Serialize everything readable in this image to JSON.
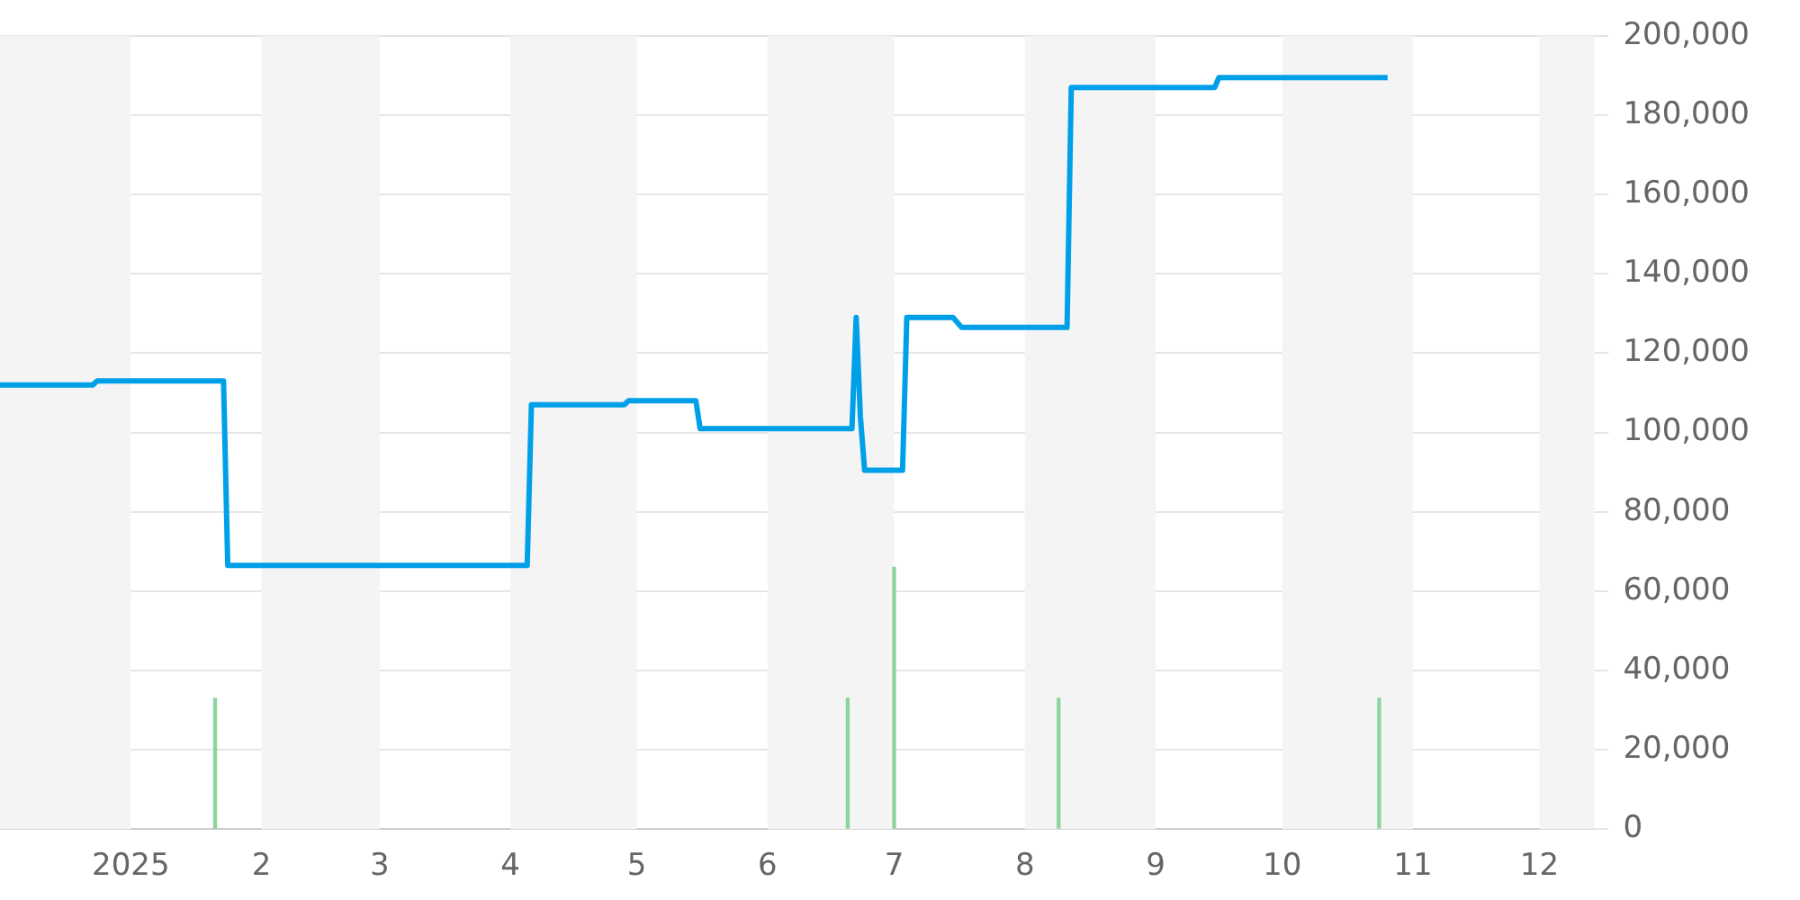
{
  "chart_data": {
    "type": "line",
    "xlim": [
      "2024-12-01",
      "2025-12-14"
    ],
    "xticks": [
      {
        "value": "2025-01-01",
        "label": "2025"
      },
      {
        "value": "2025-02-01",
        "label": "2"
      },
      {
        "value": "2025-03-01",
        "label": "3"
      },
      {
        "value": "2025-04-01",
        "label": "4"
      },
      {
        "value": "2025-05-01",
        "label": "5"
      },
      {
        "value": "2025-06-01",
        "label": "6"
      },
      {
        "value": "2025-07-01",
        "label": "7"
      },
      {
        "value": "2025-08-01",
        "label": "8"
      },
      {
        "value": "2025-09-01",
        "label": "9"
      },
      {
        "value": "2025-10-01",
        "label": "10"
      },
      {
        "value": "2025-11-01",
        "label": "11"
      },
      {
        "value": "2025-12-01",
        "label": "12"
      }
    ],
    "ylim": [
      0,
      200000
    ],
    "yticks": [
      {
        "value": 0,
        "label": "0"
      },
      {
        "value": 20000,
        "label": "20,000"
      },
      {
        "value": 40000,
        "label": "40,000"
      },
      {
        "value": 60000,
        "label": "60,000"
      },
      {
        "value": 80000,
        "label": "80,000"
      },
      {
        "value": 100000,
        "label": "100,000"
      },
      {
        "value": 120000,
        "label": "120,000"
      },
      {
        "value": 140000,
        "label": "140,000"
      },
      {
        "value": 160000,
        "label": "160,000"
      },
      {
        "value": 180000,
        "label": "180,000"
      },
      {
        "value": 200000,
        "label": "200,000"
      }
    ],
    "grid": "y",
    "legend": false,
    "marker": "none",
    "bands": [
      {
        "axis": "x",
        "from": "2024-12-01",
        "to": "2025-01-01",
        "color": "#f4f4f4"
      },
      {
        "axis": "x",
        "from": "2025-02-01",
        "to": "2025-03-01",
        "color": "#f4f4f4"
      },
      {
        "axis": "x",
        "from": "2025-04-01",
        "to": "2025-05-01",
        "color": "#f4f4f4"
      },
      {
        "axis": "x",
        "from": "2025-06-01",
        "to": "2025-07-01",
        "color": "#f4f4f4"
      },
      {
        "axis": "x",
        "from": "2025-08-01",
        "to": "2025-09-01",
        "color": "#f4f4f4"
      },
      {
        "axis": "x",
        "from": "2025-10-01",
        "to": "2025-11-01",
        "color": "#f4f4f4"
      },
      {
        "axis": "x",
        "from": "2025-12-01",
        "to": "2025-12-14",
        "color": "#f4f4f4"
      }
    ],
    "series": [
      {
        "color": "#00a0e9",
        "x": [
          "2024-12-01",
          "2024-12-23",
          "2024-12-24",
          "2025-01-23",
          "2025-01-24",
          "2025-04-05",
          "2025-04-06",
          "2025-04-28",
          "2025-04-29",
          "2025-05-15",
          "2025-05-16",
          "2025-06-21",
          "2025-06-22",
          "2025-06-23",
          "2025-06-24",
          "2025-07-03",
          "2025-07-04",
          "2025-07-15",
          "2025-07-17",
          "2025-08-11",
          "2025-08-12",
          "2025-09-15",
          "2025-09-16",
          "2025-10-26"
        ],
        "values": [
          112000,
          112000,
          113000,
          113000,
          66500,
          66500,
          107000,
          107000,
          108000,
          108000,
          101000,
          101000,
          129000,
          104000,
          90500,
          90500,
          129000,
          129000,
          126500,
          126500,
          187000,
          187000,
          189500,
          189500
        ]
      },
      {
        "type": "bar",
        "color": "#8dd49c",
        "x": [
          "2025-01-21",
          "2025-06-20",
          "2025-07-01",
          "2025-08-09",
          "2025-10-24"
        ],
        "values": [
          33000,
          33000,
          66000,
          33000,
          33000
        ]
      }
    ]
  }
}
